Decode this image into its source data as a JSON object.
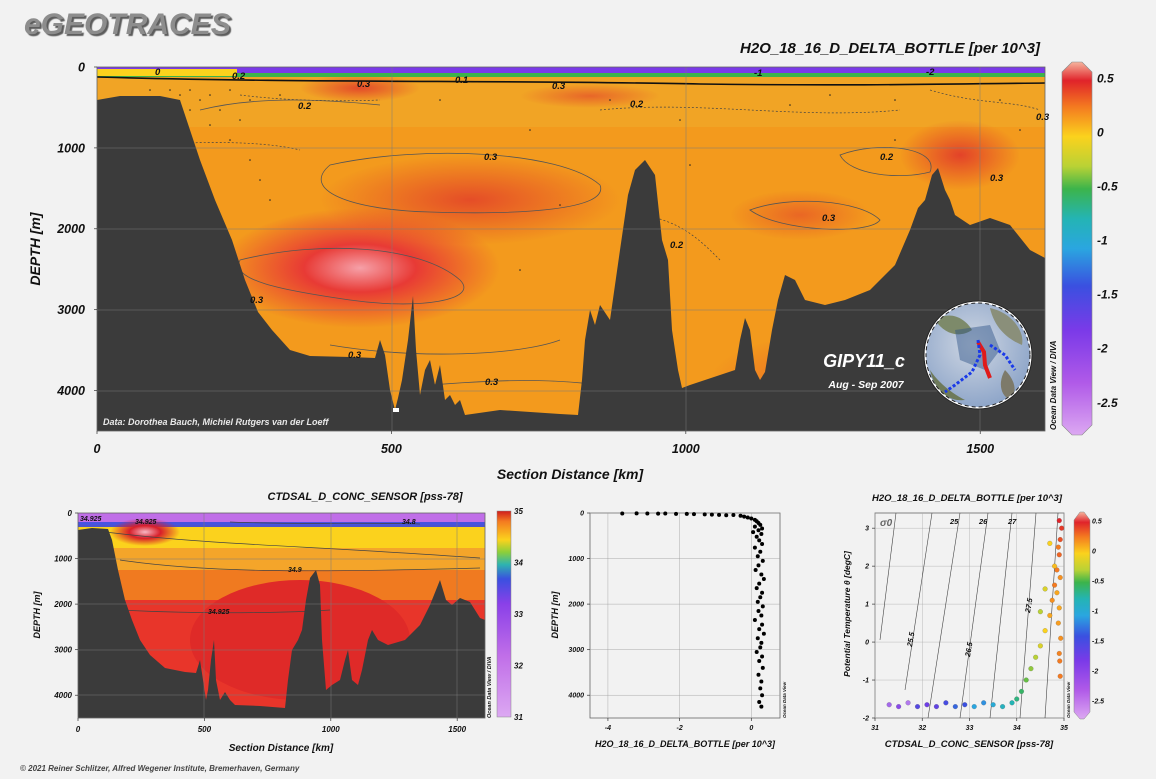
{
  "logo": "eGEOTRACES",
  "copyright": "© 2021 Reiner Schlitzer, Alfred Wegener Institute, Bremerhaven, Germany",
  "colors": {
    "topography": "#3b3b3b",
    "background": "#f2f2f2",
    "scatter_points": "#000000"
  },
  "chart_data": [
    {
      "type": "heatmap",
      "title": "H2O_18_16_D_DELTA_BOTTLE [per 10^3]",
      "xlabel": "Section Distance [km]",
      "ylabel": "DEPTH [m]",
      "xlim": [
        0,
        1610
      ],
      "ylim": [
        4500,
        0
      ],
      "x_ticks": [
        0,
        500,
        1000,
        1500
      ],
      "y_ticks": [
        0,
        1000,
        2000,
        3000,
        4000
      ],
      "colorbar": {
        "range": [
          -2.8,
          0.65
        ],
        "ticks": [
          0.5,
          0,
          -0.5,
          -1,
          -1.5,
          -2,
          -2.5
        ]
      },
      "contour_labels": [
        "0",
        "0.2",
        "0.1",
        "0.3",
        "0.3",
        "0.2",
        "0.2",
        "0.3",
        "0.3",
        "0.2",
        "0.2",
        "0.3",
        "0.3",
        "0.3",
        "0.3",
        "0.3",
        "-1",
        "-2"
      ],
      "annotations": {
        "data_credit": "Data: Dorothea Bauch, Michiel Rutgers van der Loeff",
        "cruise": "GIPY11_c",
        "period": "Aug - Sep 2007",
        "side_label": "Ocean Data View / DIVA"
      },
      "grid": true
    },
    {
      "type": "heatmap",
      "title": "CTDSAL_D_CONC_SENSOR [pss-78]",
      "xlabel": "Section Distance [km]",
      "ylabel": "DEPTH [m]",
      "xlim": [
        0,
        1610
      ],
      "ylim": [
        4500,
        0
      ],
      "x_ticks": [
        0,
        500,
        1000,
        1500
      ],
      "y_ticks": [
        0,
        1000,
        2000,
        3000,
        4000
      ],
      "colorbar": {
        "range": [
          31,
          35
        ],
        "ticks": [
          35,
          34,
          33,
          32,
          31
        ]
      },
      "contour_labels": [
        "34.925",
        "34.9",
        "34.925",
        "34.8",
        "34.925"
      ],
      "annotations": {
        "side_label": "Ocean Data View / DIVA"
      },
      "grid": true
    },
    {
      "type": "scatter",
      "title": "",
      "xlabel": "H2O_18_16_D_DELTA_BOTTLE [per 10^3]",
      "ylabel": "DEPTH [m]",
      "xlim": [
        -4.5,
        0.8
      ],
      "ylim": [
        4500,
        0
      ],
      "x_ticks": [
        -4,
        -2,
        0
      ],
      "y_ticks": [
        0,
        1000,
        2000,
        3000,
        4000
      ],
      "annotations": {
        "side_label": "Ocean Data View"
      },
      "series": [
        {
          "points": [
            [
              -3.6,
              10
            ],
            [
              -3.2,
              8
            ],
            [
              -2.9,
              12
            ],
            [
              -2.6,
              15
            ],
            [
              -2.4,
              10
            ],
            [
              -2.1,
              20
            ],
            [
              -1.8,
              18
            ],
            [
              -1.6,
              25
            ],
            [
              -1.3,
              30
            ],
            [
              -1.1,
              35
            ],
            [
              -0.9,
              40
            ],
            [
              -0.7,
              50
            ],
            [
              -0.5,
              45
            ],
            [
              -0.3,
              60
            ],
            [
              -0.2,
              80
            ],
            [
              -0.1,
              100
            ],
            [
              0.0,
              120
            ],
            [
              0.1,
              150
            ],
            [
              0.15,
              180
            ],
            [
              0.2,
              220
            ],
            [
              0.25,
              260
            ],
            [
              0.1,
              300
            ],
            [
              0.3,
              340
            ],
            [
              0.2,
              380
            ],
            [
              0.05,
              420
            ],
            [
              0.28,
              460
            ],
            [
              0.15,
              520
            ],
            [
              0.22,
              600
            ],
            [
              0.3,
              680
            ],
            [
              0.1,
              760
            ],
            [
              0.25,
              850
            ],
            [
              0.18,
              950
            ],
            [
              0.32,
              1050
            ],
            [
              0.2,
              1150
            ],
            [
              0.12,
              1250
            ],
            [
              0.28,
              1350
            ],
            [
              0.35,
              1450
            ],
            [
              0.22,
              1550
            ],
            [
              0.15,
              1650
            ],
            [
              0.3,
              1750
            ],
            [
              0.25,
              1850
            ],
            [
              0.18,
              1950
            ],
            [
              0.32,
              2050
            ],
            [
              0.2,
              2150
            ],
            [
              0.28,
              2250
            ],
            [
              0.1,
              2350
            ],
            [
              0.3,
              2450
            ],
            [
              0.22,
              2550
            ],
            [
              0.35,
              2650
            ],
            [
              0.18,
              2750
            ],
            [
              0.28,
              2850
            ],
            [
              0.25,
              2950
            ],
            [
              0.15,
              3050
            ],
            [
              0.3,
              3150
            ],
            [
              0.22,
              3250
            ],
            [
              0.32,
              3400
            ],
            [
              0.2,
              3550
            ],
            [
              0.28,
              3700
            ],
            [
              0.25,
              3850
            ],
            [
              0.3,
              4000
            ],
            [
              0.22,
              4150
            ],
            [
              0.28,
              4250
            ]
          ]
        }
      ],
      "grid": true
    },
    {
      "type": "scatter",
      "title": "H2O_18_16_D_DELTA_BOTTLE [per 10^3]",
      "xlabel": "CTDSAL_D_CONC_SENSOR [pss-78]",
      "ylabel": "Potential Temperature θ [degC]",
      "xlim": [
        31,
        35
      ],
      "ylim": [
        -2,
        3.4
      ],
      "x_ticks": [
        31,
        32,
        33,
        34,
        35
      ],
      "y_ticks": [
        -2,
        -1,
        0,
        1,
        2,
        3
      ],
      "isopycnal_labels": [
        "σ0",
        "25",
        "26",
        "27",
        "25.5",
        "26.5",
        "27.5"
      ],
      "colorbar": {
        "range": [
          -2.8,
          0.65
        ],
        "ticks": [
          0.5,
          0,
          -0.5,
          -1,
          -1.5,
          -2,
          -2.5
        ]
      },
      "annotations": {
        "side_label": "Ocean Data View"
      },
      "series": [
        {
          "points": [
            [
              31.3,
              -1.65,
              -2.4
            ],
            [
              31.5,
              -1.7,
              -2.2
            ],
            [
              31.7,
              -1.6,
              -2.5
            ],
            [
              31.9,
              -1.7,
              -1.8
            ],
            [
              32.1,
              -1.65,
              -2.0
            ],
            [
              32.3,
              -1.7,
              -1.9
            ],
            [
              32.5,
              -1.6,
              -1.7
            ],
            [
              32.7,
              -1.7,
              -1.5
            ],
            [
              32.9,
              -1.65,
              -1.6
            ],
            [
              33.1,
              -1.7,
              -1.2
            ],
            [
              33.3,
              -1.6,
              -1.3
            ],
            [
              33.5,
              -1.65,
              -1.1
            ],
            [
              33.7,
              -1.7,
              -0.9
            ],
            [
              33.9,
              -1.6,
              -0.8
            ],
            [
              34.0,
              -1.5,
              -0.6
            ],
            [
              34.1,
              -1.3,
              -0.5
            ],
            [
              34.2,
              -1.0,
              -0.3
            ],
            [
              34.3,
              -0.7,
              -0.2
            ],
            [
              34.4,
              -0.4,
              -0.1
            ],
            [
              34.5,
              -0.1,
              0.0
            ],
            [
              34.6,
              0.3,
              0.1
            ],
            [
              34.7,
              0.7,
              0.2
            ],
            [
              34.75,
              1.1,
              0.25
            ],
            [
              34.8,
              1.5,
              0.3
            ],
            [
              34.85,
              1.9,
              0.3
            ],
            [
              34.9,
              2.3,
              0.35
            ],
            [
              34.92,
              2.7,
              0.4
            ],
            [
              34.95,
              3.0,
              0.45
            ],
            [
              34.9,
              3.2,
              0.5
            ],
            [
              34.88,
              2.5,
              0.3
            ],
            [
              34.92,
              1.7,
              0.25
            ],
            [
              34.9,
              0.9,
              0.2
            ],
            [
              34.93,
              0.1,
              0.25
            ],
            [
              34.91,
              -0.5,
              0.3
            ],
            [
              34.92,
              -0.9,
              0.3
            ],
            [
              34.9,
              -0.3,
              0.28
            ],
            [
              34.88,
              0.5,
              0.22
            ],
            [
              34.85,
              1.3,
              0.2
            ],
            [
              34.8,
              2.0,
              0.15
            ],
            [
              34.7,
              2.6,
              0.1
            ],
            [
              34.6,
              1.4,
              0.0
            ],
            [
              34.5,
              0.8,
              -0.1
            ]
          ]
        }
      ],
      "grid": true
    }
  ]
}
